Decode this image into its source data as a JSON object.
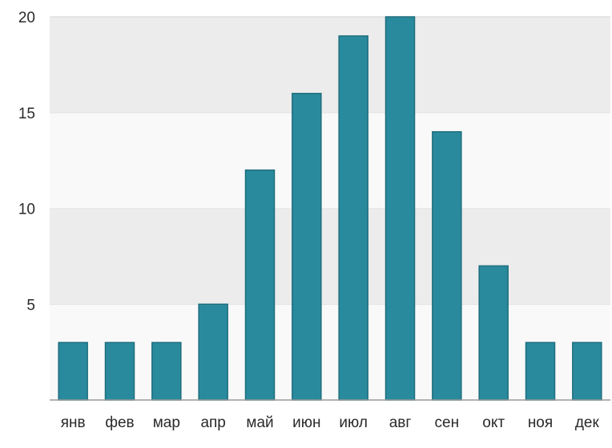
{
  "chart_data": {
    "type": "bar",
    "title": "",
    "xlabel": "",
    "ylabel": "",
    "categories": [
      "янв",
      "фев",
      "мар",
      "апр",
      "май",
      "июн",
      "июл",
      "авг",
      "сен",
      "окт",
      "ноя",
      "дек"
    ],
    "values": [
      3,
      3,
      3,
      5,
      12,
      16,
      19,
      20,
      14,
      7,
      3,
      3
    ],
    "ylim": [
      0,
      20
    ],
    "yticks": [
      5,
      10,
      15,
      20
    ],
    "ytick_labels": [
      "5",
      "10",
      "15",
      "20"
    ],
    "grid": "horizontal bands",
    "colors": {
      "bar_fill": "#2a8a9d",
      "bar_stroke": "#1e6e7e",
      "band_shaded": "#ececec",
      "band_light": "#f9f9f9",
      "axis": "#9a9a9a",
      "text": "#2a2a2a"
    }
  }
}
